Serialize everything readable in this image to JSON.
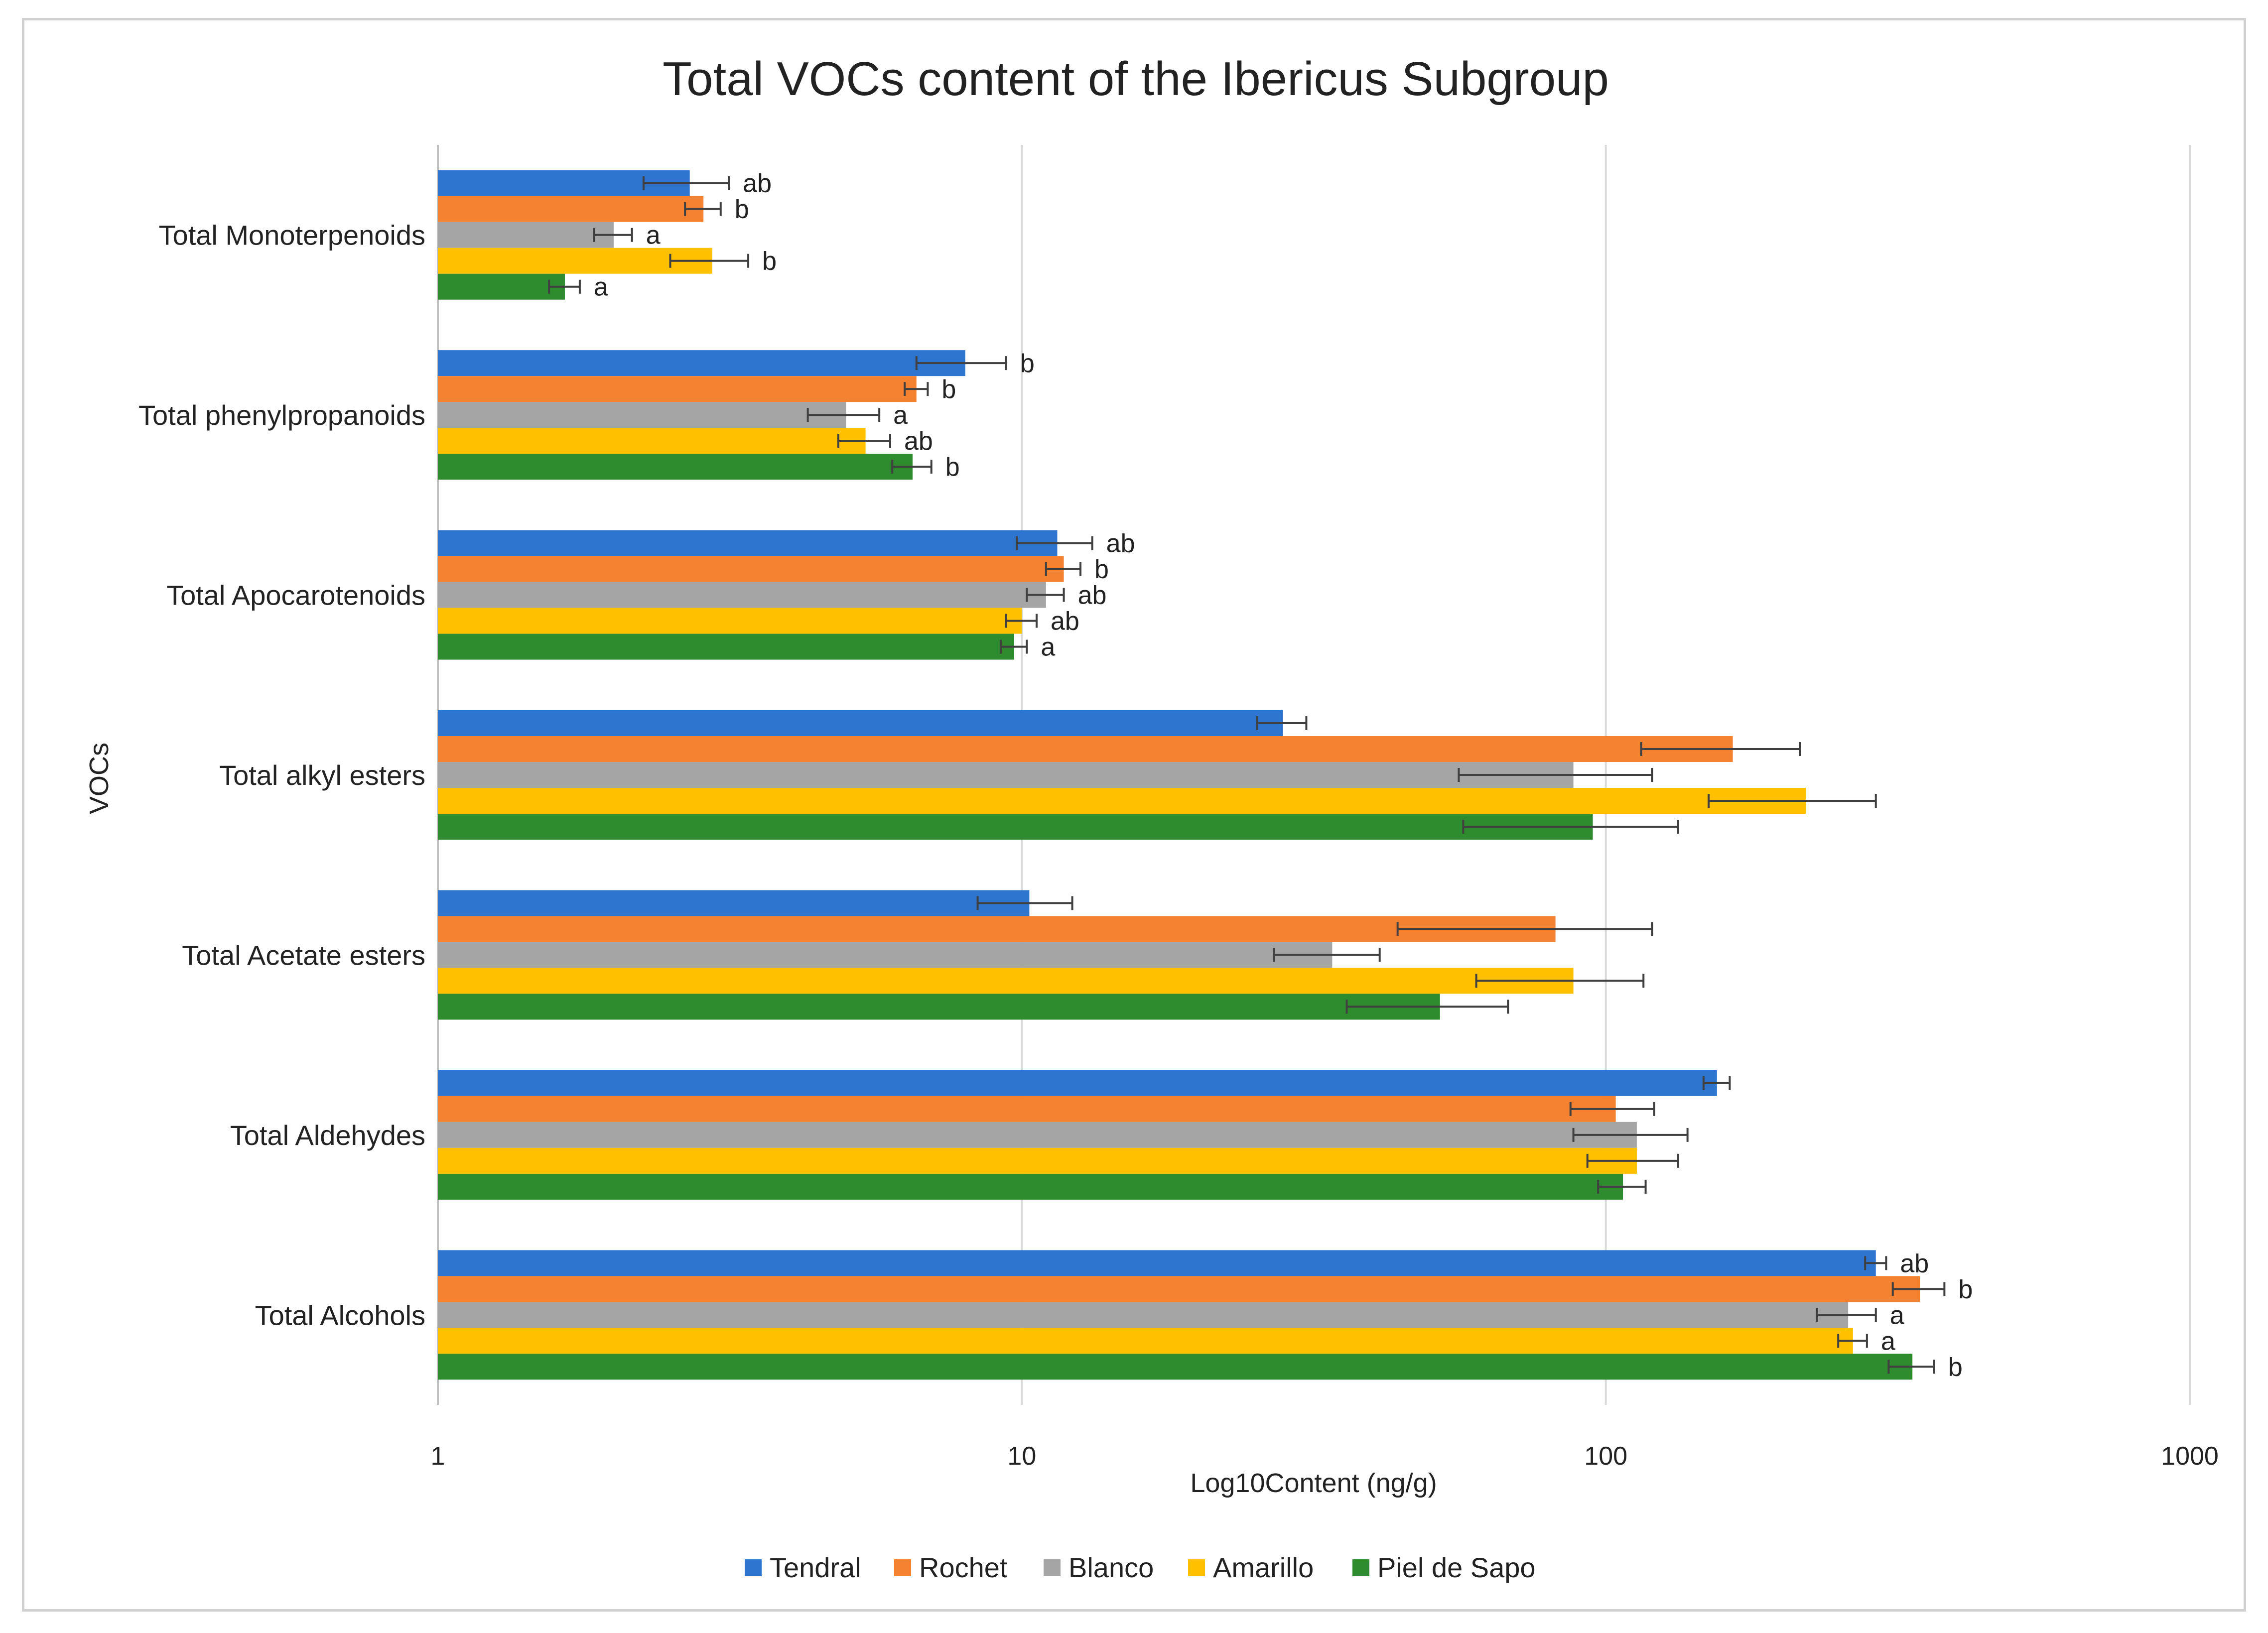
{
  "chart_data": {
    "type": "bar",
    "orientation": "horizontal",
    "title": "Total VOCs content of the Ibericus Subgroup",
    "xlabel": "Log10Content (ng/g)",
    "ylabel": "VOCs",
    "xscale": "log",
    "xlim": [
      1,
      1000
    ],
    "xticks": [
      1,
      10,
      100,
      1000
    ],
    "xtick_labels": [
      "1",
      "10",
      "100",
      "1000"
    ],
    "grid": true,
    "legend_position": "bottom",
    "categories": [
      "Total Monoterpenoids",
      "Total phenylpropanoids",
      "Total Apocarotenoids",
      "Total alkyl esters",
      "Total Acetate esters",
      "Total Aldehydes",
      "Total Alcohols"
    ],
    "series": [
      {
        "name": "Tendral",
        "color": "#2e75d0",
        "values": [
          2.7,
          8.0,
          11.5,
          28,
          10.3,
          155,
          290
        ],
        "errors": [
          0.45,
          1.4,
          1.7,
          2.7,
          1.9,
          8,
          12
        ],
        "labels": [
          "ab",
          "b",
          "ab",
          "",
          "",
          "",
          "ab"
        ]
      },
      {
        "name": "Rochet",
        "color": "#f58231",
        "values": [
          2.85,
          6.6,
          11.8,
          165,
          82,
          104,
          345
        ],
        "errors": [
          0.2,
          0.3,
          0.8,
          50,
          38,
          17,
          35
        ],
        "labels": [
          "b",
          "b",
          "b",
          "",
          "",
          "",
          "b"
        ]
      },
      {
        "name": "Blanco",
        "color": "#a5a5a5",
        "values": [
          2.0,
          5.0,
          11.0,
          88,
          34,
          113,
          260
        ],
        "errors": [
          0.15,
          0.7,
          0.8,
          32,
          7,
          25,
          30
        ],
        "labels": [
          "a",
          "a",
          "ab",
          "",
          "",
          "",
          "a"
        ]
      },
      {
        "name": "Amarillo",
        "color": "#ffc000",
        "values": [
          2.95,
          5.4,
          10.0,
          220,
          88,
          113,
          265
        ],
        "errors": [
          0.45,
          0.55,
          0.6,
          70,
          28,
          20,
          15
        ],
        "labels": [
          "b",
          "ab",
          "ab",
          "",
          "",
          "",
          "a"
        ]
      },
      {
        "name": "Piel de Sapo",
        "color": "#2e8b2e",
        "values": [
          1.65,
          6.5,
          9.7,
          95,
          52,
          107,
          335
        ],
        "errors": [
          0.1,
          0.5,
          0.5,
          38,
          16,
          10,
          30
        ],
        "labels": [
          "a",
          "b",
          "a",
          "",
          "",
          "",
          "b"
        ]
      }
    ]
  }
}
